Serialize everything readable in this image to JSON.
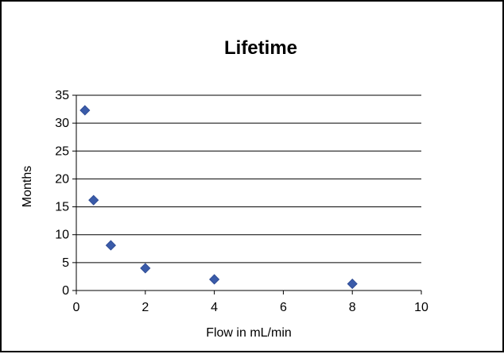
{
  "chart_data": {
    "type": "scatter",
    "title": "Lifetime",
    "xlabel": "Flow in mL/min",
    "ylabel": "Months",
    "xlim": [
      0,
      10
    ],
    "ylim": [
      0,
      35
    ],
    "x_ticks": [
      "0",
      "2",
      "4",
      "6",
      "8",
      "10"
    ],
    "y_ticks": [
      "0",
      "5",
      "10",
      "15",
      "20",
      "25",
      "30",
      "35"
    ],
    "grid": "horizontal",
    "legend": "none",
    "marker": "diamond",
    "color": "#3A5BA9",
    "points": [
      {
        "x": 0.25,
        "y": 32.3
      },
      {
        "x": 0.5,
        "y": 16.2
      },
      {
        "x": 1.0,
        "y": 8.1
      },
      {
        "x": 2.0,
        "y": 4.0
      },
      {
        "x": 4.0,
        "y": 2.0
      },
      {
        "x": 8.0,
        "y": 1.2
      }
    ]
  }
}
